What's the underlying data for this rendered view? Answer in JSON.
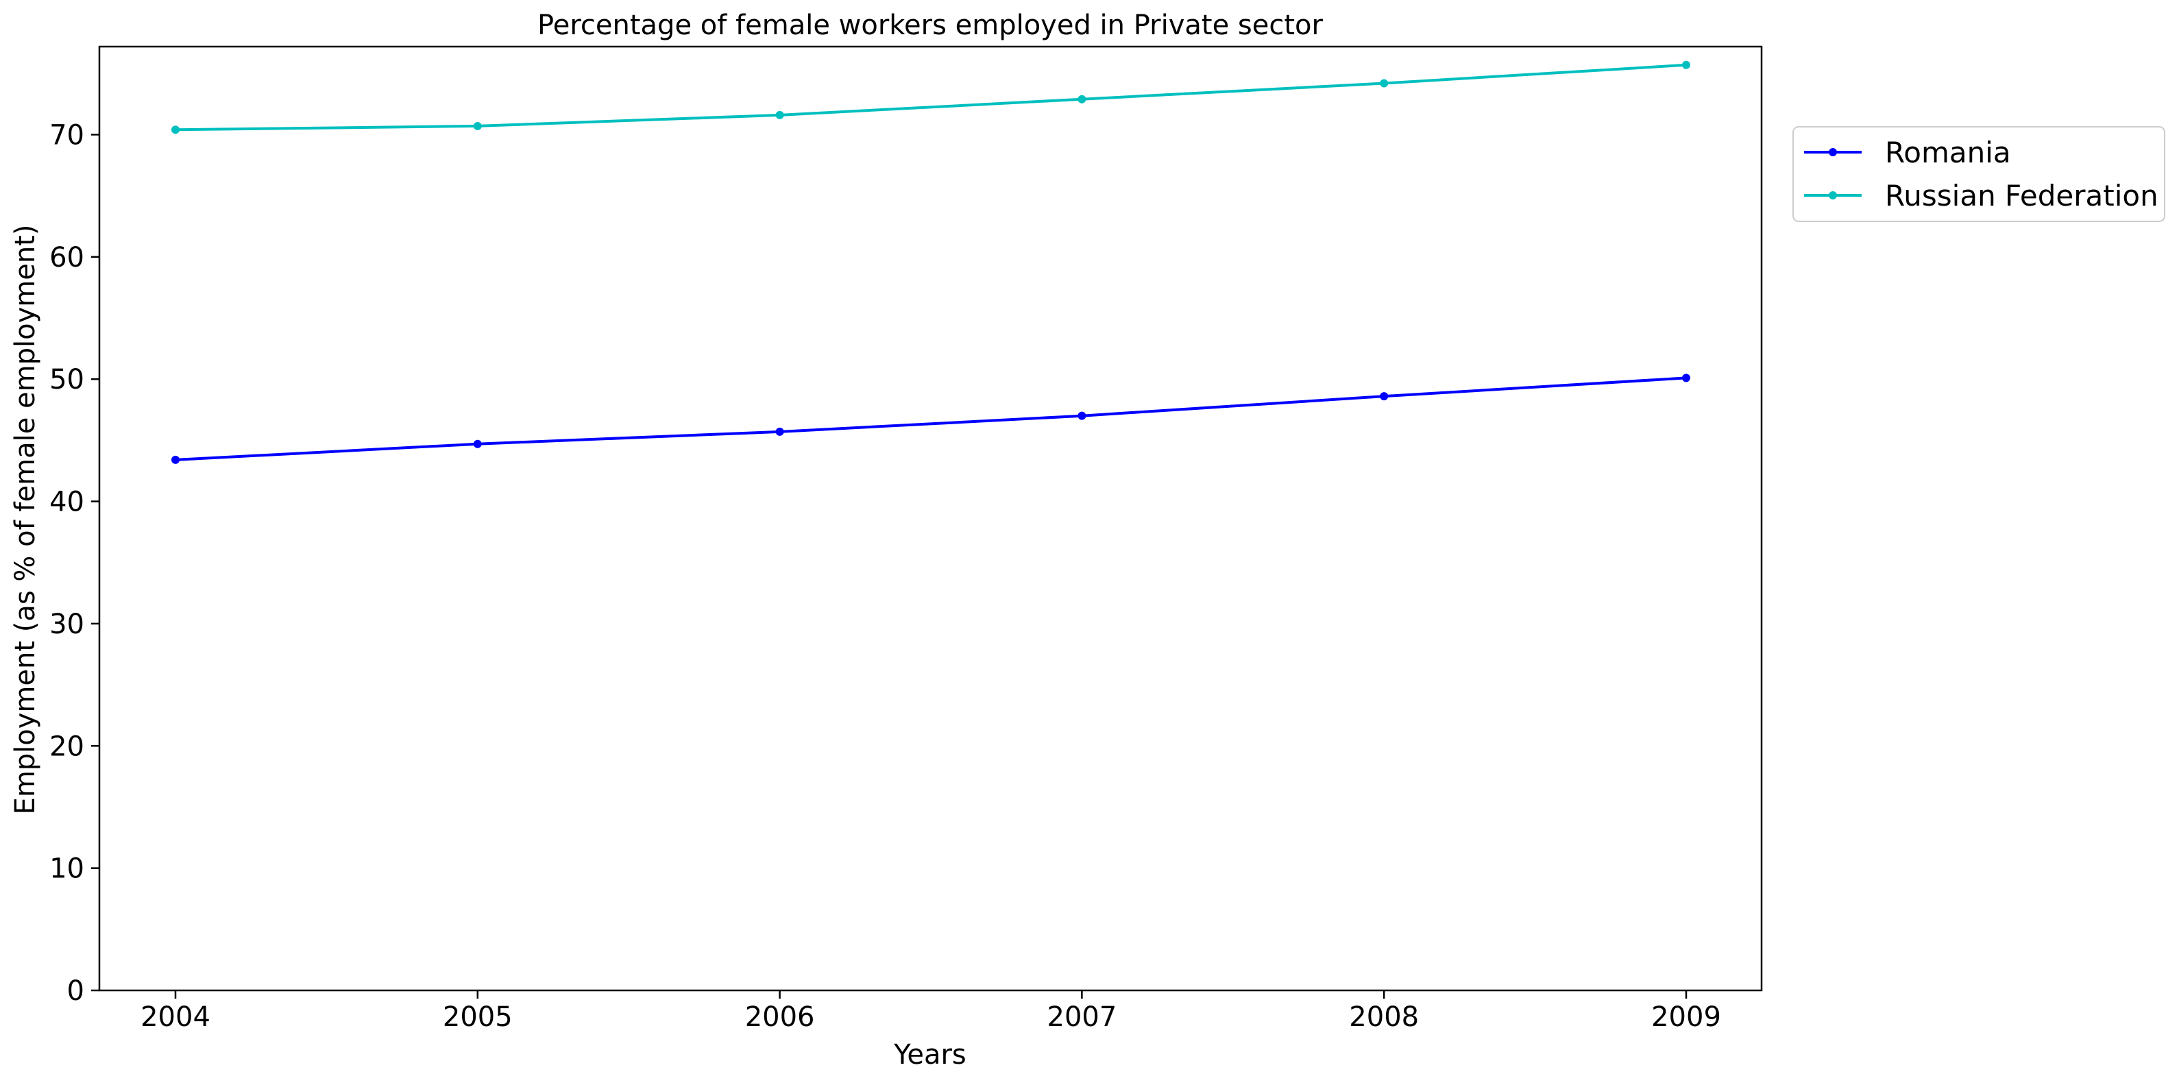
{
  "chart_data": {
    "type": "line",
    "title": "Percentage of female workers employed in Private sector",
    "xlabel": "Years",
    "ylabel": "Employment (as % of female employment)",
    "x": [
      "2004",
      "2005",
      "2006",
      "2007",
      "2008",
      "2009"
    ],
    "series": [
      {
        "name": "Romania",
        "color": "#0000ff",
        "values": [
          43.4,
          44.7,
          45.7,
          47.0,
          48.6,
          50.1
        ]
      },
      {
        "name": "Russian Federation",
        "color": "#00bfbf",
        "values": [
          70.4,
          70.7,
          71.6,
          72.9,
          74.2,
          75.7
        ]
      }
    ],
    "yticks": [
      0,
      10,
      20,
      30,
      40,
      50,
      60,
      70
    ],
    "ylim": [
      0,
      77.2
    ],
    "grid": false,
    "legend": "outside-right-top"
  }
}
